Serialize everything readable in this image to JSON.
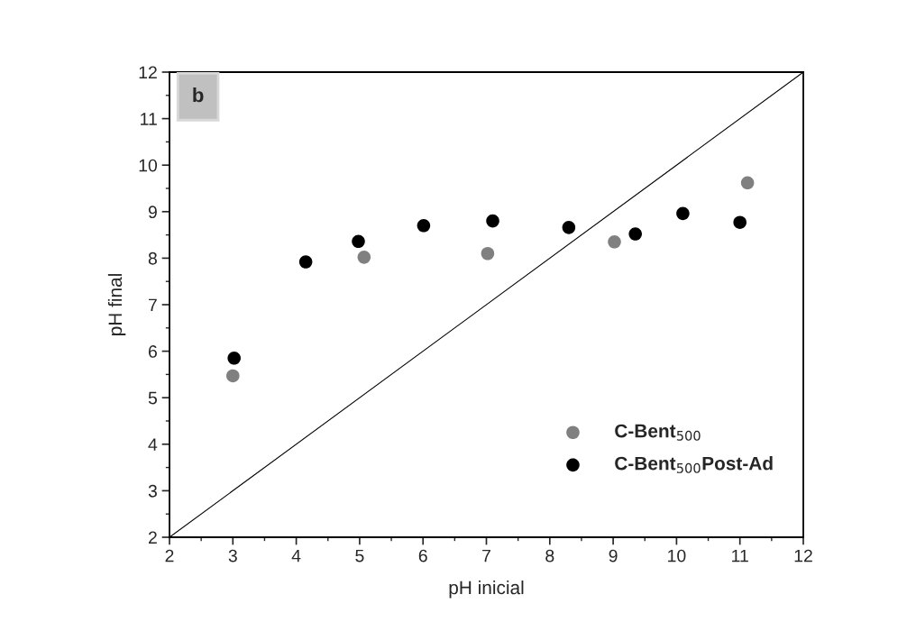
{
  "chart_data": {
    "type": "scatter",
    "xlabel": "pH inicial",
    "ylabel": "pH final",
    "xlim": [
      2,
      12
    ],
    "ylim": [
      2,
      12
    ],
    "xticks": [
      2,
      3,
      4,
      5,
      6,
      7,
      8,
      9,
      10,
      11,
      12
    ],
    "yticks": [
      2,
      3,
      4,
      5,
      6,
      7,
      8,
      9,
      10,
      11,
      12
    ],
    "annotations": [
      "b"
    ],
    "legend": "bottom right",
    "grid": false,
    "series": [
      {
        "name": "C-Bent$_{500}$",
        "marker": "circle",
        "color": "#808080",
        "x": [
          3.0,
          5.07,
          7.02,
          9.02,
          11.12
        ],
        "values": [
          5.47,
          8.02,
          8.1,
          8.35,
          9.62
        ]
      },
      {
        "name": "C-Bent$_{500}$Post-Ad",
        "marker": "circle",
        "color": "#000000",
        "x": [
          3.02,
          4.15,
          4.98,
          6.01,
          7.1,
          8.3,
          9.35,
          10.1,
          11.0
        ],
        "values": [
          5.85,
          7.92,
          8.36,
          8.7,
          8.8,
          8.66,
          8.52,
          8.96,
          8.77
        ]
      },
      {
        "type": "line",
        "color": "#000000",
        "x": [
          2,
          12
        ],
        "values": [
          2,
          12
        ]
      }
    ]
  }
}
